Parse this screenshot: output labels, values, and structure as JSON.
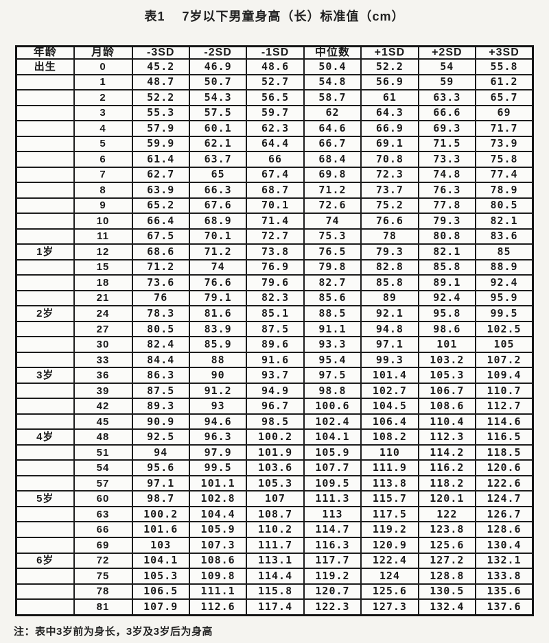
{
  "title": "表1　 7岁以下男童身高（长）标准值（cm）",
  "note": "注：表中3岁前为身长，3岁及3岁后为身高",
  "colors": {
    "page_background": "#f5f4f0",
    "cell_background": "#fbfbf9",
    "border": "#1c1c1c",
    "text": "#1b1b1b"
  },
  "table": {
    "headers": [
      "年龄",
      "月龄",
      "-3SD",
      "-2SD",
      "-1SD",
      "中位数",
      "+1SD",
      "+2SD",
      "+3SD"
    ],
    "rows": [
      [
        "出生",
        "0",
        "45.2",
        "46.9",
        "48.6",
        "50.4",
        "52.2",
        "54",
        "55.8"
      ],
      [
        "",
        "1",
        "48.7",
        "50.7",
        "52.7",
        "54.8",
        "56.9",
        "59",
        "61.2"
      ],
      [
        "",
        "2",
        "52.2",
        "54.3",
        "56.5",
        "58.7",
        "61",
        "63.3",
        "65.7"
      ],
      [
        "",
        "3",
        "55.3",
        "57.5",
        "59.7",
        "62",
        "64.3",
        "66.6",
        "69"
      ],
      [
        "",
        "4",
        "57.9",
        "60.1",
        "62.3",
        "64.6",
        "66.9",
        "69.3",
        "71.7"
      ],
      [
        "",
        "5",
        "59.9",
        "62.1",
        "64.4",
        "66.7",
        "69.1",
        "71.5",
        "73.9"
      ],
      [
        "",
        "6",
        "61.4",
        "63.7",
        "66",
        "68.4",
        "70.8",
        "73.3",
        "75.8"
      ],
      [
        "",
        "7",
        "62.7",
        "65",
        "67.4",
        "69.8",
        "72.3",
        "74.8",
        "77.4"
      ],
      [
        "",
        "8",
        "63.9",
        "66.3",
        "68.7",
        "71.2",
        "73.7",
        "76.3",
        "78.9"
      ],
      [
        "",
        "9",
        "65.2",
        "67.6",
        "70.1",
        "72.6",
        "75.2",
        "77.8",
        "80.5"
      ],
      [
        "",
        "10",
        "66.4",
        "68.9",
        "71.4",
        "74",
        "76.6",
        "79.3",
        "82.1"
      ],
      [
        "",
        "11",
        "67.5",
        "70.1",
        "72.7",
        "75.3",
        "78",
        "80.8",
        "83.6"
      ],
      [
        "1岁",
        "12",
        "68.6",
        "71.2",
        "73.8",
        "76.5",
        "79.3",
        "82.1",
        "85"
      ],
      [
        "",
        "15",
        "71.2",
        "74",
        "76.9",
        "79.8",
        "82.8",
        "85.8",
        "88.9"
      ],
      [
        "",
        "18",
        "73.6",
        "76.6",
        "79.6",
        "82.7",
        "85.8",
        "89.1",
        "92.4"
      ],
      [
        "",
        "21",
        "76",
        "79.1",
        "82.3",
        "85.6",
        "89",
        "92.4",
        "95.9"
      ],
      [
        "2岁",
        "24",
        "78.3",
        "81.6",
        "85.1",
        "88.5",
        "92.1",
        "95.8",
        "99.5"
      ],
      [
        "",
        "27",
        "80.5",
        "83.9",
        "87.5",
        "91.1",
        "94.8",
        "98.6",
        "102.5"
      ],
      [
        "",
        "30",
        "82.4",
        "85.9",
        "89.6",
        "93.3",
        "97.1",
        "101",
        "105"
      ],
      [
        "",
        "33",
        "84.4",
        "88",
        "91.6",
        "95.4",
        "99.3",
        "103.2",
        "107.2"
      ],
      [
        "3岁",
        "36",
        "86.3",
        "90",
        "93.7",
        "97.5",
        "101.4",
        "105.3",
        "109.4"
      ],
      [
        "",
        "39",
        "87.5",
        "91.2",
        "94.9",
        "98.8",
        "102.7",
        "106.7",
        "110.7"
      ],
      [
        "",
        "42",
        "89.3",
        "93",
        "96.7",
        "100.6",
        "104.5",
        "108.6",
        "112.7"
      ],
      [
        "",
        "45",
        "90.9",
        "94.6",
        "98.5",
        "102.4",
        "106.4",
        "110.4",
        "114.6"
      ],
      [
        "4岁",
        "48",
        "92.5",
        "96.3",
        "100.2",
        "104.1",
        "108.2",
        "112.3",
        "116.5"
      ],
      [
        "",
        "51",
        "94",
        "97.9",
        "101.9",
        "105.9",
        "110",
        "114.2",
        "118.5"
      ],
      [
        "",
        "54",
        "95.6",
        "99.5",
        "103.6",
        "107.7",
        "111.9",
        "116.2",
        "120.6"
      ],
      [
        "",
        "57",
        "97.1",
        "101.1",
        "105.3",
        "109.5",
        "113.8",
        "118.2",
        "122.6"
      ],
      [
        "5岁",
        "60",
        "98.7",
        "102.8",
        "107",
        "111.3",
        "115.7",
        "120.1",
        "124.7"
      ],
      [
        "",
        "63",
        "100.2",
        "104.4",
        "108.7",
        "113",
        "117.5",
        "122",
        "126.7"
      ],
      [
        "",
        "66",
        "101.6",
        "105.9",
        "110.2",
        "114.7",
        "119.2",
        "123.8",
        "128.6"
      ],
      [
        "",
        "69",
        "103",
        "107.3",
        "111.7",
        "116.3",
        "120.9",
        "125.6",
        "130.4"
      ],
      [
        "6岁",
        "72",
        "104.1",
        "108.6",
        "113.1",
        "117.7",
        "122.4",
        "127.2",
        "132.1"
      ],
      [
        "",
        "75",
        "105.3",
        "109.8",
        "114.4",
        "119.2",
        "124",
        "128.8",
        "133.8"
      ],
      [
        "",
        "78",
        "106.5",
        "111.1",
        "115.8",
        "120.7",
        "125.6",
        "130.5",
        "135.6"
      ],
      [
        "",
        "81",
        "107.9",
        "112.6",
        "117.4",
        "122.3",
        "127.3",
        "132.4",
        "137.6"
      ]
    ]
  }
}
